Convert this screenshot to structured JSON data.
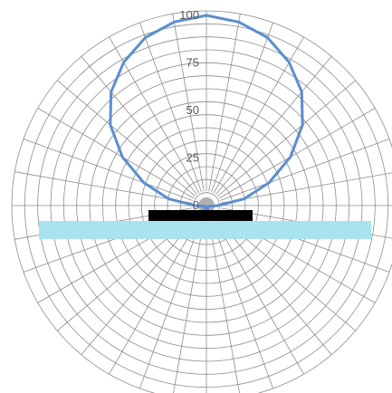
{
  "chart_data": {
    "type": "polar-line",
    "title": "",
    "r_ticks": [
      0,
      25,
      50,
      75,
      100
    ],
    "r_tick_labels": [
      "0",
      "25",
      "50",
      "75",
      "100"
    ],
    "r_range": [
      0,
      100
    ],
    "angular_step_deg": 10,
    "grid": true,
    "series": [
      {
        "color": "#5b8fcf",
        "angles_deg": [
          0,
          10,
          20,
          30,
          40,
          50,
          60,
          70,
          80,
          90,
          100,
          110,
          120,
          130,
          140,
          150,
          160,
          170,
          180,
          190,
          200,
          210,
          220,
          230,
          240,
          250,
          260,
          270,
          280,
          290,
          300,
          310,
          320,
          330,
          340,
          350
        ],
        "values": [
          100,
          98,
          94,
          87,
          78,
          66,
          51,
          35,
          20,
          6,
          2,
          1,
          1,
          1,
          1,
          1,
          3,
          5,
          7,
          5,
          3,
          1,
          1,
          1,
          1,
          1,
          2,
          6,
          20,
          35,
          51,
          66,
          78,
          87,
          94,
          98
        ]
      }
    ],
    "overlays": [
      {
        "kind": "band",
        "color": "#a9e3ef",
        "label": ""
      },
      {
        "kind": "block",
        "color": "#000000",
        "label": ""
      }
    ]
  }
}
